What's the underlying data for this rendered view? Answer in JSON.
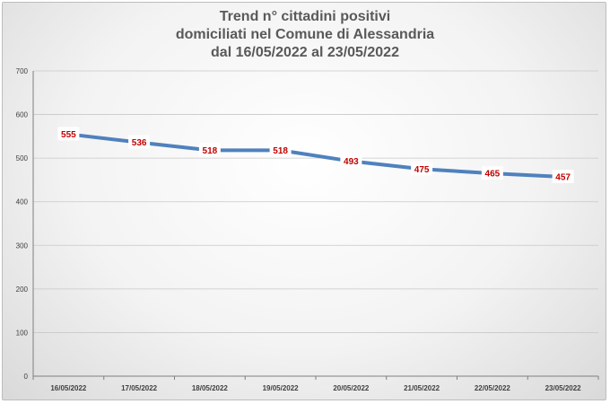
{
  "chart_data": {
    "type": "line",
    "title": [
      "Trend n° cittadini positivi",
      "domiciliati nel Comune di Alessandria",
      "dal 16/05/2022 al 23/05/2022"
    ],
    "categories": [
      "16/05/2022",
      "17/05/2022",
      "18/05/2022",
      "19/05/2022",
      "20/05/2022",
      "21/05/2022",
      "22/05/2022",
      "23/05/2022"
    ],
    "values": [
      555,
      536,
      518,
      518,
      493,
      475,
      465,
      457
    ],
    "data_labels": [
      "555",
      "536",
      "518",
      "518",
      "493",
      "475",
      "465",
      "457"
    ],
    "ylim": [
      0,
      700
    ],
    "yticks": [
      "0",
      "100",
      "200",
      "300",
      "400",
      "500",
      "600",
      "700"
    ],
    "grid": true,
    "legend": "none",
    "colors": {
      "line": "#4f81bd",
      "label": "#c00000",
      "grid": "#c8c8c8",
      "axis_text": "#404040",
      "title": "#595959"
    }
  }
}
